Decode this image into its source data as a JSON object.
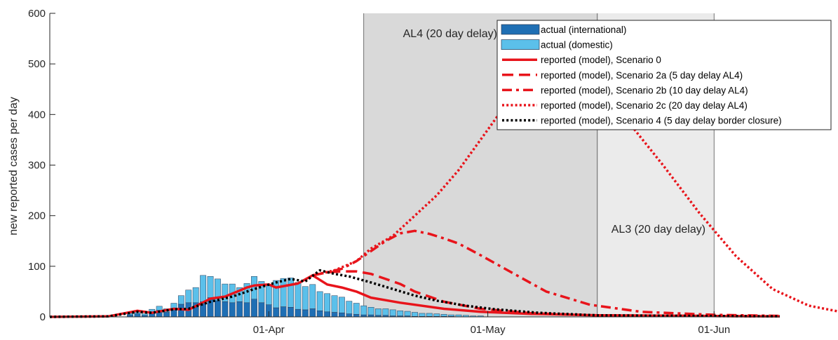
{
  "chart_data": {
    "type": "bar",
    "ylabel": "new reported cases per day",
    "ylim": [
      0,
      600
    ],
    "yticks": [
      0,
      100,
      200,
      300,
      400,
      500,
      600
    ],
    "x_start": "2020-03-02",
    "x_end": "2020-06-10",
    "xticks": [
      {
        "date": "2020-04-01",
        "label": "01-Apr"
      },
      {
        "date": "2020-05-01",
        "label": "01-May"
      },
      {
        "date": "2020-06-01",
        "label": "01-Jun"
      }
    ],
    "regions": [
      {
        "label": "AL4 (20 day delay)",
        "start": "2020-04-14",
        "end": "2020-05-16",
        "color": "#d9d9d9"
      },
      {
        "label": "AL3 (20 day delay)",
        "start": "2020-05-16",
        "end": "2020-06-01",
        "color": "#ebebeb"
      }
    ],
    "colors": {
      "international": "#1f6fb4",
      "domestic": "#5bc0ea",
      "model_red": "#e8141b",
      "model_black": "#000000"
    },
    "bars": {
      "dates": [
        "2020-03-13",
        "2020-03-14",
        "2020-03-15",
        "2020-03-16",
        "2020-03-17",
        "2020-03-18",
        "2020-03-19",
        "2020-03-20",
        "2020-03-21",
        "2020-03-22",
        "2020-03-23",
        "2020-03-24",
        "2020-03-25",
        "2020-03-26",
        "2020-03-27",
        "2020-03-28",
        "2020-03-29",
        "2020-03-30",
        "2020-03-31",
        "2020-04-01",
        "2020-04-02",
        "2020-04-03",
        "2020-04-04",
        "2020-04-05",
        "2020-04-06",
        "2020-04-07",
        "2020-04-08",
        "2020-04-09",
        "2020-04-10",
        "2020-04-11",
        "2020-04-12",
        "2020-04-13",
        "2020-04-14",
        "2020-04-15",
        "2020-04-16",
        "2020-04-17",
        "2020-04-18",
        "2020-04-19",
        "2020-04-20",
        "2020-04-21",
        "2020-04-22",
        "2020-04-23",
        "2020-04-24",
        "2020-04-25",
        "2020-04-26",
        "2020-04-27",
        "2020-04-28",
        "2020-04-29",
        "2020-04-30"
      ],
      "international": [
        4,
        6,
        3,
        10,
        13,
        9,
        16,
        25,
        28,
        28,
        30,
        38,
        32,
        30,
        28,
        30,
        28,
        35,
        28,
        24,
        18,
        20,
        19,
        15,
        14,
        16,
        12,
        10,
        9,
        8,
        6,
        5,
        4,
        4,
        3,
        3,
        2,
        2,
        2,
        1,
        1,
        1,
        1,
        1,
        1,
        0,
        0,
        0,
        0
      ],
      "domestic": [
        3,
        5,
        3,
        5,
        8,
        7,
        11,
        17,
        25,
        30,
        52,
        42,
        43,
        35,
        37,
        28,
        38,
        45,
        42,
        40,
        54,
        56,
        58,
        53,
        46,
        48,
        38,
        36,
        33,
        31,
        25,
        22,
        18,
        15,
        13,
        13,
        12,
        10,
        9,
        8,
        6,
        6,
        5,
        4,
        3,
        4,
        3,
        2,
        2
      ]
    },
    "series": [
      {
        "name": "reported (model), Scenario 0",
        "style": "solid",
        "color": "#e8141b",
        "points": [
          [
            "2020-03-02",
            0
          ],
          [
            "2020-03-10",
            1
          ],
          [
            "2020-03-14",
            12
          ],
          [
            "2020-03-16",
            8
          ],
          [
            "2020-03-19",
            16
          ],
          [
            "2020-03-21",
            14
          ],
          [
            "2020-03-24",
            36
          ],
          [
            "2020-03-26",
            40
          ],
          [
            "2020-03-28",
            52
          ],
          [
            "2020-03-29",
            58
          ],
          [
            "2020-03-30",
            62
          ],
          [
            "2020-04-01",
            64
          ],
          [
            "2020-04-02",
            58
          ],
          [
            "2020-04-05",
            66
          ],
          [
            "2020-04-07",
            82
          ],
          [
            "2020-04-09",
            64
          ],
          [
            "2020-04-11",
            58
          ],
          [
            "2020-04-13",
            50
          ],
          [
            "2020-04-15",
            38
          ],
          [
            "2020-04-17",
            33
          ],
          [
            "2020-04-19",
            28
          ],
          [
            "2020-04-21",
            24
          ],
          [
            "2020-04-25",
            16
          ],
          [
            "2020-04-30",
            10
          ],
          [
            "2020-05-07",
            6
          ],
          [
            "2020-05-16",
            3
          ],
          [
            "2020-06-10",
            1
          ]
        ]
      },
      {
        "name": "reported (model), Scenario 2a (5 day delay AL4)",
        "style": "dash",
        "color": "#e8141b",
        "points": [
          [
            "2020-04-07",
            82
          ],
          [
            "2020-04-09",
            88
          ],
          [
            "2020-04-11",
            90
          ],
          [
            "2020-04-13",
            90
          ],
          [
            "2020-04-15",
            85
          ],
          [
            "2020-04-17",
            75
          ],
          [
            "2020-04-19",
            65
          ],
          [
            "2020-04-21",
            50
          ],
          [
            "2020-04-25",
            30
          ],
          [
            "2020-04-30",
            16
          ],
          [
            "2020-05-07",
            7
          ],
          [
            "2020-05-16",
            3
          ],
          [
            "2020-06-10",
            1
          ]
        ]
      },
      {
        "name": "reported (model), Scenario 2b (10 day delay AL4)",
        "style": "dashdot",
        "color": "#e8141b",
        "points": [
          [
            "2020-04-07",
            82
          ],
          [
            "2020-04-09",
            88
          ],
          [
            "2020-04-11",
            95
          ],
          [
            "2020-04-13",
            110
          ],
          [
            "2020-04-15",
            130
          ],
          [
            "2020-04-17",
            150
          ],
          [
            "2020-04-19",
            165
          ],
          [
            "2020-04-21",
            170
          ],
          [
            "2020-04-23",
            164
          ],
          [
            "2020-04-25",
            155
          ],
          [
            "2020-04-27",
            145
          ],
          [
            "2020-04-30",
            122
          ],
          [
            "2020-05-04",
            90
          ],
          [
            "2020-05-09",
            50
          ],
          [
            "2020-05-15",
            24
          ],
          [
            "2020-05-22",
            10
          ],
          [
            "2020-06-01",
            4
          ],
          [
            "2020-06-10",
            2
          ]
        ]
      },
      {
        "name": "reported (model), Scenario 2c (20 day delay AL4)",
        "style": "dot",
        "color": "#e8141b",
        "points": [
          [
            "2020-04-07",
            82
          ],
          [
            "2020-04-10",
            92
          ],
          [
            "2020-04-13",
            110
          ],
          [
            "2020-04-15",
            135
          ],
          [
            "2020-04-18",
            160
          ],
          [
            "2020-04-21",
            200
          ],
          [
            "2020-04-24",
            240
          ],
          [
            "2020-04-27",
            290
          ],
          [
            "2020-04-30",
            350
          ],
          [
            "2020-05-03",
            410
          ],
          [
            "2020-05-06",
            455
          ],
          [
            "2020-05-09",
            480
          ],
          [
            "2020-05-11",
            485
          ],
          [
            "2020-05-13",
            478
          ],
          [
            "2020-05-16",
            450
          ],
          [
            "2020-05-20",
            390
          ],
          [
            "2020-05-25",
            300
          ],
          [
            "2020-05-30",
            205
          ],
          [
            "2020-06-04",
            120
          ],
          [
            "2020-06-09",
            55
          ],
          [
            "2020-06-14",
            22
          ],
          [
            "2020-06-19",
            8
          ],
          [
            "2020-06-24",
            3
          ],
          [
            "2020-06-28",
            1
          ]
        ]
      },
      {
        "name": "reported (model), Scenario 4 (5 day delay border closure)",
        "style": "dot",
        "color": "#000000",
        "points": [
          [
            "2020-03-02",
            0
          ],
          [
            "2020-03-10",
            1
          ],
          [
            "2020-03-14",
            10
          ],
          [
            "2020-03-16",
            8
          ],
          [
            "2020-03-19",
            15
          ],
          [
            "2020-03-21",
            16
          ],
          [
            "2020-03-24",
            30
          ],
          [
            "2020-03-27",
            40
          ],
          [
            "2020-03-30",
            55
          ],
          [
            "2020-04-02",
            68
          ],
          [
            "2020-04-04",
            75
          ],
          [
            "2020-04-06",
            70
          ],
          [
            "2020-04-08",
            92
          ],
          [
            "2020-04-10",
            85
          ],
          [
            "2020-04-12",
            80
          ],
          [
            "2020-04-15",
            68
          ],
          [
            "2020-04-18",
            55
          ],
          [
            "2020-04-21",
            42
          ],
          [
            "2020-04-24",
            32
          ],
          [
            "2020-04-28",
            22
          ],
          [
            "2020-05-02",
            15
          ],
          [
            "2020-05-08",
            8
          ],
          [
            "2020-05-16",
            3
          ],
          [
            "2020-06-10",
            1
          ]
        ]
      }
    ],
    "legend": {
      "placement": "top-right",
      "entries": [
        {
          "label": "actual (international)",
          "kind": "patch",
          "color": "#1f6fb4"
        },
        {
          "label": "actual (domestic)",
          "kind": "patch",
          "color": "#5bc0ea"
        },
        {
          "label": "reported (model), Scenario 0",
          "kind": "line",
          "style": "solid",
          "color": "#e8141b"
        },
        {
          "label": "reported (model), Scenario 2a (5 day delay AL4)",
          "kind": "line",
          "style": "dash",
          "color": "#e8141b"
        },
        {
          "label": "reported (model), Scenario 2b (10 day delay AL4)",
          "kind": "line",
          "style": "dashdot",
          "color": "#e8141b"
        },
        {
          "label": "reported (model), Scenario 2c (20 day delay AL4)",
          "kind": "line",
          "style": "dot",
          "color": "#e8141b"
        },
        {
          "label": "reported (model), Scenario 4 (5 day delay border closure)",
          "kind": "line",
          "style": "dot",
          "color": "#000000"
        }
      ]
    }
  }
}
